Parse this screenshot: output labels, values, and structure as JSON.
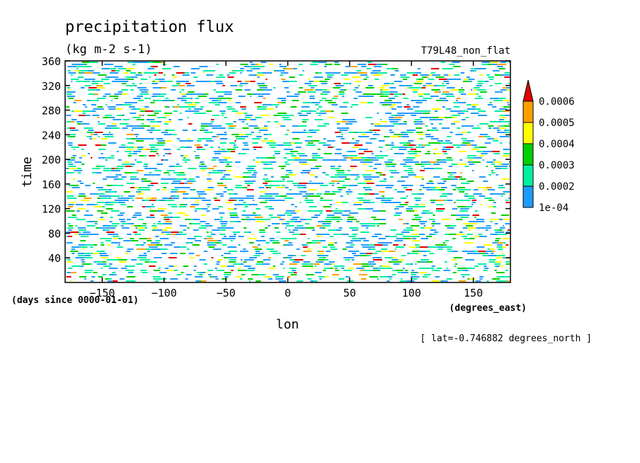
{
  "chart_data": {
    "type": "heatmap",
    "title": "precipitation flux",
    "subtitle": "(kg m-2 s-1)",
    "run_label": "T79L48_non_flat",
    "xlabel": "lon",
    "xunits": "(degrees_east)",
    "ylabel": "time",
    "yunits": "(days since 0000-01-01)",
    "annotation": "[ lat=-0.746882 degrees_north ]",
    "xlim": [
      -180,
      180
    ],
    "ylim": [
      0,
      360
    ],
    "x_ticks": [
      -150,
      -100,
      -50,
      0,
      50,
      100,
      150
    ],
    "x_tick_labels": [
      "−150",
      "−100",
      "−50",
      "0",
      "50",
      "100",
      "150"
    ],
    "y_ticks": [
      40,
      80,
      120,
      160,
      200,
      240,
      280,
      320,
      360
    ],
    "y_tick_labels": [
      "40",
      "80",
      "120",
      "160",
      "200",
      "240",
      "280",
      "320",
      "360"
    ],
    "colorbar": {
      "levels": [
        0.0001,
        0.0002,
        0.0003,
        0.0004,
        0.0005,
        0.0006
      ],
      "labels": [
        "1e-04",
        "0.0002",
        "0.0003",
        "0.0004",
        "0.0005",
        "0.0006"
      ],
      "colors": [
        "#1e9bff",
        "#00f0a0",
        "#00d000",
        "#ffff00",
        "#ffa000",
        "#e00000"
      ],
      "extend": "max"
    }
  }
}
